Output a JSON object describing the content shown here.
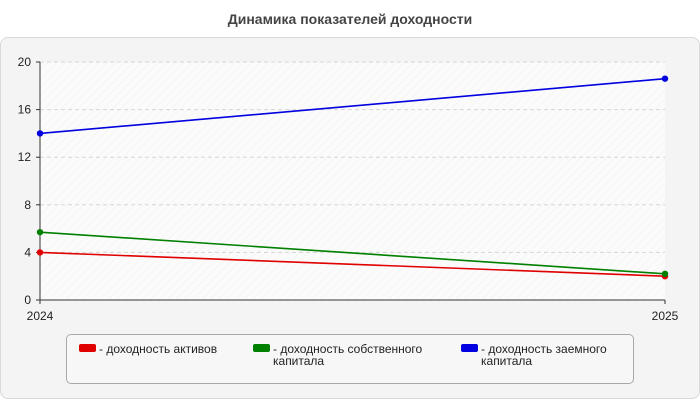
{
  "chart_data": {
    "type": "line",
    "title": "Динамика показателей доходности",
    "x": [
      "2024",
      "2025"
    ],
    "ylim": [
      0,
      20
    ],
    "yticks": [
      "0",
      "4",
      "8",
      "12",
      "16",
      "20"
    ],
    "xlabel": "",
    "ylabel": "",
    "grid": true,
    "legend_position": "bottom",
    "series": [
      {
        "name": "- доходность активов",
        "color": "#e00000",
        "values": [
          4.0,
          2.0
        ]
      },
      {
        "name": "- доходность собственного капитала",
        "color": "#008000",
        "values": [
          5.7,
          2.2
        ]
      },
      {
        "name": "- доходность заемного капитала",
        "color": "#0000e0",
        "values": [
          14.0,
          18.6
        ]
      }
    ]
  }
}
